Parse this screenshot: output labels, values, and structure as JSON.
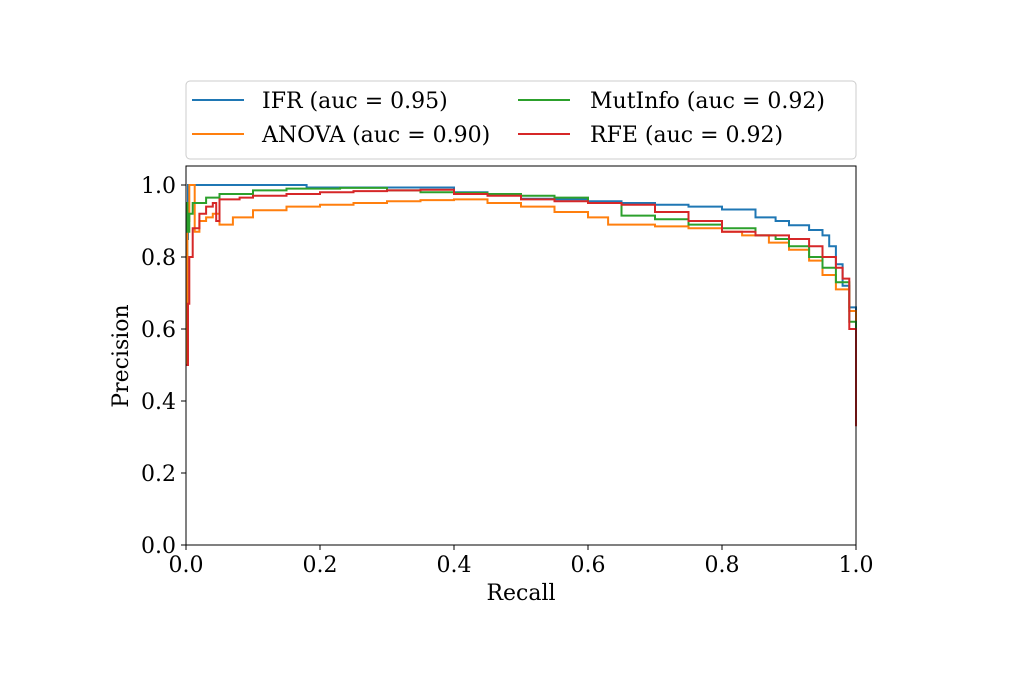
{
  "chart_data": {
    "type": "line",
    "title": "",
    "xlabel": "Recall",
    "ylabel": "Precision",
    "xlim": [
      0.0,
      1.0
    ],
    "ylim": [
      0.0,
      1.05
    ],
    "x_ticks": [
      "0.0",
      "0.2",
      "0.4",
      "0.6",
      "0.8",
      "1.0"
    ],
    "y_ticks": [
      "0.0",
      "0.2",
      "0.4",
      "0.6",
      "0.8",
      "1.0"
    ],
    "grid": false,
    "legend_position": "top",
    "series": [
      {
        "name": "IFR (auc = 0.95)",
        "color": "#1f77b4",
        "points": [
          [
            0.0,
            0.5
          ],
          [
            0.002,
            0.85
          ],
          [
            0.003,
            1.0
          ],
          [
            0.18,
            1.0
          ],
          [
            0.18,
            0.993
          ],
          [
            0.3,
            0.993
          ],
          [
            0.4,
            0.98
          ],
          [
            0.45,
            0.972
          ],
          [
            0.5,
            0.962
          ],
          [
            0.55,
            0.96
          ],
          [
            0.6,
            0.955
          ],
          [
            0.65,
            0.95
          ],
          [
            0.7,
            0.945
          ],
          [
            0.75,
            0.94
          ],
          [
            0.8,
            0.932
          ],
          [
            0.85,
            0.91
          ],
          [
            0.88,
            0.9
          ],
          [
            0.9,
            0.888
          ],
          [
            0.93,
            0.875
          ],
          [
            0.95,
            0.86
          ],
          [
            0.96,
            0.83
          ],
          [
            0.97,
            0.78
          ],
          [
            0.98,
            0.72
          ],
          [
            0.99,
            0.66
          ],
          [
            1.0,
            0.63
          ],
          [
            1.0,
            0.35
          ]
        ]
      },
      {
        "name": "ANOVA (auc = 0.90)",
        "color": "#ff7f0e",
        "points": [
          [
            0.0,
            0.5
          ],
          [
            0.002,
            0.9
          ],
          [
            0.005,
            1.0
          ],
          [
            0.013,
            1.0
          ],
          [
            0.013,
            0.87
          ],
          [
            0.02,
            0.9
          ],
          [
            0.03,
            0.91
          ],
          [
            0.04,
            0.92
          ],
          [
            0.05,
            0.89
          ],
          [
            0.07,
            0.91
          ],
          [
            0.1,
            0.93
          ],
          [
            0.15,
            0.94
          ],
          [
            0.2,
            0.945
          ],
          [
            0.25,
            0.95
          ],
          [
            0.3,
            0.955
          ],
          [
            0.35,
            0.958
          ],
          [
            0.4,
            0.96
          ],
          [
            0.45,
            0.95
          ],
          [
            0.5,
            0.94
          ],
          [
            0.55,
            0.925
          ],
          [
            0.6,
            0.91
          ],
          [
            0.63,
            0.89
          ],
          [
            0.7,
            0.885
          ],
          [
            0.75,
            0.88
          ],
          [
            0.8,
            0.87
          ],
          [
            0.83,
            0.86
          ],
          [
            0.87,
            0.84
          ],
          [
            0.9,
            0.82
          ],
          [
            0.93,
            0.79
          ],
          [
            0.95,
            0.75
          ],
          [
            0.97,
            0.71
          ],
          [
            0.99,
            0.65
          ],
          [
            1.0,
            0.62
          ],
          [
            1.0,
            0.4
          ]
        ]
      },
      {
        "name": "MutInfo (auc = 0.92)",
        "color": "#2ca02c",
        "points": [
          [
            0.0,
            0.95
          ],
          [
            0.002,
            0.87
          ],
          [
            0.005,
            0.92
          ],
          [
            0.01,
            0.95
          ],
          [
            0.03,
            0.965
          ],
          [
            0.05,
            0.975
          ],
          [
            0.1,
            0.985
          ],
          [
            0.15,
            0.99
          ],
          [
            0.2,
            0.99
          ],
          [
            0.23,
            0.992
          ],
          [
            0.3,
            0.985
          ],
          [
            0.35,
            0.98
          ],
          [
            0.4,
            0.978
          ],
          [
            0.45,
            0.975
          ],
          [
            0.5,
            0.97
          ],
          [
            0.55,
            0.965
          ],
          [
            0.6,
            0.95
          ],
          [
            0.65,
            0.915
          ],
          [
            0.7,
            0.905
          ],
          [
            0.75,
            0.89
          ],
          [
            0.8,
            0.88
          ],
          [
            0.85,
            0.86
          ],
          [
            0.88,
            0.85
          ],
          [
            0.9,
            0.83
          ],
          [
            0.93,
            0.8
          ],
          [
            0.95,
            0.77
          ],
          [
            0.97,
            0.73
          ],
          [
            0.99,
            0.62
          ],
          [
            1.0,
            0.6
          ],
          [
            1.0,
            0.45
          ]
        ]
      },
      {
        "name": "RFE (auc = 0.92)",
        "color": "#d62728",
        "points": [
          [
            0.0,
            0.5
          ],
          [
            0.003,
            0.67
          ],
          [
            0.005,
            0.8
          ],
          [
            0.01,
            0.88
          ],
          [
            0.02,
            0.92
          ],
          [
            0.03,
            0.94
          ],
          [
            0.04,
            0.95
          ],
          [
            0.045,
            0.9
          ],
          [
            0.05,
            0.96
          ],
          [
            0.08,
            0.965
          ],
          [
            0.1,
            0.97
          ],
          [
            0.15,
            0.975
          ],
          [
            0.2,
            0.98
          ],
          [
            0.25,
            0.983
          ],
          [
            0.3,
            0.985
          ],
          [
            0.35,
            0.987
          ],
          [
            0.4,
            0.975
          ],
          [
            0.45,
            0.97
          ],
          [
            0.5,
            0.96
          ],
          [
            0.55,
            0.955
          ],
          [
            0.6,
            0.95
          ],
          [
            0.65,
            0.945
          ],
          [
            0.7,
            0.925
          ],
          [
            0.75,
            0.9
          ],
          [
            0.8,
            0.87
          ],
          [
            0.85,
            0.86
          ],
          [
            0.9,
            0.85
          ],
          [
            0.93,
            0.83
          ],
          [
            0.95,
            0.8
          ],
          [
            0.97,
            0.77
          ],
          [
            0.98,
            0.74
          ],
          [
            0.99,
            0.6
          ],
          [
            1.0,
            0.55
          ],
          [
            1.0,
            0.33
          ]
        ]
      }
    ]
  }
}
